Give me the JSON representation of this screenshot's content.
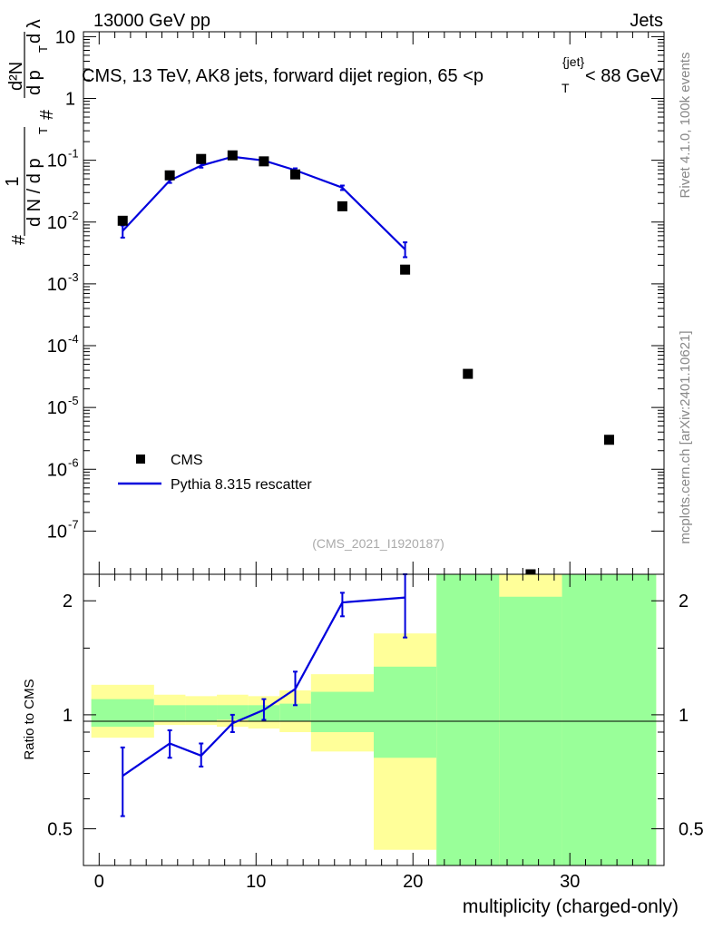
{
  "header": {
    "left": "13000 GeV pp",
    "right": "Jets",
    "side_top": "Rivet 4.1.0,  100k events",
    "side_bottom": "mcplots.cern.ch [arXiv:2401.10621]",
    "analysis_id": "(CMS_2021_I1920187)"
  },
  "colors": {
    "data": "#000000",
    "mc": "#0000dd",
    "band_outer": "#ffff99",
    "band_inner": "#99ff99"
  },
  "chart_data": [
    {
      "type": "scatter",
      "title": "CMS, 13 TeV, AK8 jets, forward dijet region, 65 <p_T^{jet}< 88 GeV",
      "title_parts": {
        "pre": "CMS, 13 TeV, AK8 jets, forward dijet region, 65 <p",
        "sup": "{jet}",
        "sub": "T",
        "post": "< 88 GeV"
      },
      "ylabel": "1/N dN/dp_T d^2N/dp_T dλ",
      "ylabel_parts": {
        "hash": "#",
        "one": "1",
        "dn": "d N / d p",
        "t": "T",
        "d2n": "d²N",
        "dpt": "d p",
        "dl": "d λ"
      },
      "yscale": "log",
      "xlim": [
        -1,
        36
      ],
      "ylim": [
        2e-08,
        12
      ],
      "yticks": [
        {
          "v": 1e-07,
          "base": "10",
          "exp": "-7"
        },
        {
          "v": 1e-06,
          "base": "10",
          "exp": "-6"
        },
        {
          "v": 1e-05,
          "base": "10",
          "exp": "-5"
        },
        {
          "v": 0.0001,
          "base": "10",
          "exp": "-4"
        },
        {
          "v": 0.001,
          "base": "10",
          "exp": "-3"
        },
        {
          "v": 0.01,
          "base": "10",
          "exp": "-2"
        },
        {
          "v": 0.1,
          "base": "10",
          "exp": "-1"
        },
        {
          "v": 1,
          "base": "1",
          "exp": ""
        },
        {
          "v": 10,
          "base": "10",
          "exp": ""
        }
      ],
      "legend": [
        "CMS",
        "Pythia 8.315 rescatter"
      ],
      "legend_position": "bottom-left",
      "series": [
        {
          "name": "CMS",
          "points": [
            {
              "x": 1.5,
              "y": 0.0105
            },
            {
              "x": 4.5,
              "y": 0.057
            },
            {
              "x": 6.5,
              "y": 0.105
            },
            {
              "x": 8.5,
              "y": 0.12
            },
            {
              "x": 10.5,
              "y": 0.096
            },
            {
              "x": 12.5,
              "y": 0.059
            },
            {
              "x": 15.5,
              "y": 0.018
            },
            {
              "x": 19.5,
              "y": 0.0017
            },
            {
              "x": 23.5,
              "y": 3.5e-05
            },
            {
              "x": 27.5,
              "y": 2e-08
            },
            {
              "x": 32.5,
              "y": 3e-06
            }
          ]
        },
        {
          "name": "Pythia 8.315 rescatter",
          "points": [
            {
              "x": 1.5,
              "y": 0.0072,
              "err": [
                0.0056,
                0.0088
              ]
            },
            {
              "x": 4.5,
              "y": 0.047,
              "err": [
                0.043,
                0.051
              ]
            },
            {
              "x": 6.5,
              "y": 0.082,
              "err": [
                0.076,
                0.089
              ]
            },
            {
              "x": 8.5,
              "y": 0.114,
              "err": [
                0.109,
                0.119
              ]
            },
            {
              "x": 10.5,
              "y": 0.099,
              "err": [
                0.094,
                0.104
              ]
            },
            {
              "x": 12.5,
              "y": 0.069,
              "err": [
                0.064,
                0.074
              ]
            },
            {
              "x": 15.5,
              "y": 0.036,
              "err": [
                0.033,
                0.039
              ]
            },
            {
              "x": 19.5,
              "y": 0.0036,
              "err": [
                0.0027,
                0.0047
              ]
            }
          ]
        }
      ]
    },
    {
      "type": "line",
      "title": "",
      "xlabel": "multiplicity (charged-only)",
      "ylabel": "Ratio to CMS",
      "yscale": "log",
      "xlim": [
        -1,
        36
      ],
      "ylim": [
        0.4,
        2.35
      ],
      "xticks": [
        0,
        10,
        20,
        30
      ],
      "yticks": [
        {
          "v": 0.5,
          "label": "0.5"
        },
        {
          "v": 1,
          "label": "1"
        },
        {
          "v": 2,
          "label": "2"
        }
      ],
      "bands": [
        {
          "x0": -0.5,
          "x1": 3.5,
          "outer": [
            0.87,
            1.2
          ],
          "inner": [
            0.93,
            1.1
          ]
        },
        {
          "x0": 3.5,
          "x1": 5.5,
          "outer": [
            0.94,
            1.13
          ],
          "inner": [
            0.96,
            1.06
          ]
        },
        {
          "x0": 5.5,
          "x1": 7.5,
          "outer": [
            0.94,
            1.12
          ],
          "inner": [
            0.96,
            1.06
          ]
        },
        {
          "x0": 7.5,
          "x1": 9.5,
          "outer": [
            0.93,
            1.13
          ],
          "inner": [
            0.97,
            1.06
          ]
        },
        {
          "x0": 9.5,
          "x1": 11.5,
          "outer": [
            0.92,
            1.12
          ],
          "inner": [
            0.96,
            1.06
          ]
        },
        {
          "x0": 11.5,
          "x1": 13.5,
          "outer": [
            0.9,
            1.16
          ],
          "inner": [
            0.96,
            1.07
          ]
        },
        {
          "x0": 13.5,
          "x1": 17.5,
          "outer": [
            0.8,
            1.28
          ],
          "inner": [
            0.9,
            1.15
          ]
        },
        {
          "x0": 17.5,
          "x1": 21.5,
          "outer": [
            0.44,
            1.64
          ],
          "inner": [
            0.77,
            1.34
          ]
        },
        {
          "x0": 21.5,
          "x1": 25.5,
          "outer": [
            0.4,
            2.35
          ],
          "inner": [
            0.4,
            2.35
          ]
        },
        {
          "x0": 25.5,
          "x1": 29.5,
          "outer": [
            0.4,
            2.35
          ],
          "inner": [
            0.4,
            2.05
          ]
        },
        {
          "x0": 29.5,
          "x1": 35.5,
          "outer": [
            0.4,
            2.35
          ],
          "inner": [
            0.4,
            2.35
          ]
        }
      ],
      "series": [
        {
          "name": "Pythia 8.315 rescatter / CMS",
          "points": [
            {
              "x": 1.5,
              "y": 0.69,
              "err": [
                0.54,
                0.82
              ]
            },
            {
              "x": 4.5,
              "y": 0.84,
              "err": [
                0.77,
                0.91
              ]
            },
            {
              "x": 6.5,
              "y": 0.78,
              "err": [
                0.73,
                0.84
              ]
            },
            {
              "x": 8.5,
              "y": 0.95,
              "err": [
                0.9,
                1.0
              ]
            },
            {
              "x": 10.5,
              "y": 1.03,
              "err": [
                0.97,
                1.1
              ]
            },
            {
              "x": 12.5,
              "y": 1.17,
              "err": [
                1.06,
                1.3
              ]
            },
            {
              "x": 15.5,
              "y": 1.98,
              "err": [
                1.82,
                2.1
              ]
            },
            {
              "x": 19.5,
              "y": 2.04,
              "err": [
                1.6,
                2.35
              ]
            }
          ]
        }
      ]
    }
  ]
}
